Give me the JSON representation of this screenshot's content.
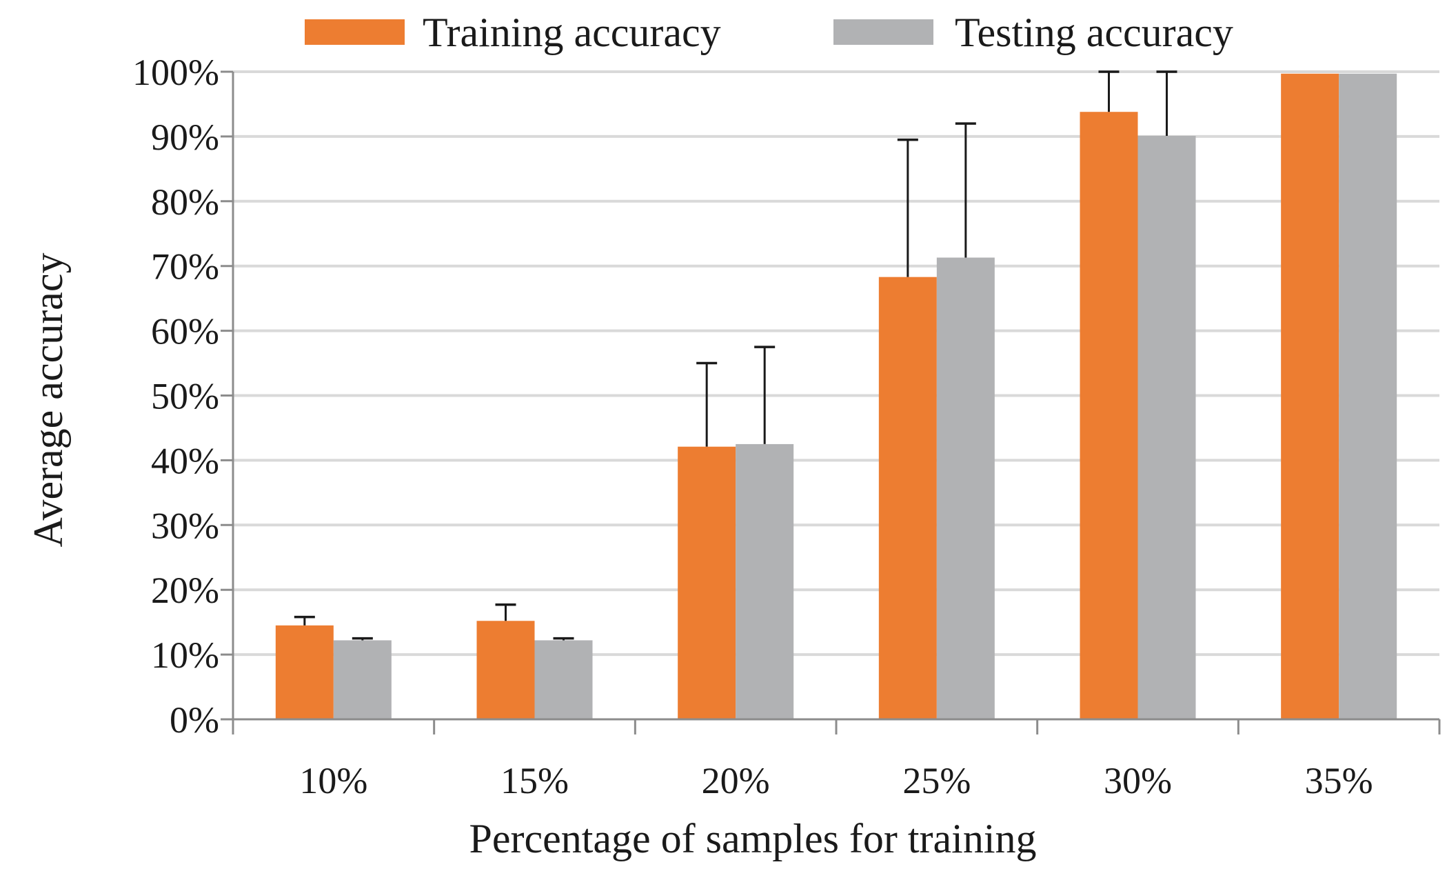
{
  "chart_data": {
    "type": "bar",
    "title": "",
    "xlabel": "Percentage of samples for training",
    "ylabel": "Average accuracy",
    "categories": [
      "10%",
      "15%",
      "20%",
      "25%",
      "30%",
      "35%"
    ],
    "ylim": [
      0,
      100
    ],
    "yticks": [
      0,
      10,
      20,
      30,
      40,
      50,
      60,
      70,
      80,
      90,
      100
    ],
    "ytick_labels": [
      "0%",
      "10%",
      "20%",
      "30%",
      "40%",
      "50%",
      "60%",
      "70%",
      "80%",
      "90%",
      "100%"
    ],
    "grid": true,
    "legend_position": "top-center",
    "series": [
      {
        "name": "Training accuracy",
        "color": "#ED7D31",
        "values": [
          14.5,
          15.2,
          42.1,
          68.3,
          93.8,
          99.7
        ],
        "error_upper": [
          1.3,
          2.5,
          12.9,
          21.2,
          6.2,
          0
        ]
      },
      {
        "name": "Testing accuracy",
        "color": "#B1B2B4",
        "values": [
          12.2,
          12.2,
          42.5,
          71.3,
          90.1,
          99.7
        ],
        "error_upper": [
          0.3,
          0.3,
          15.0,
          20.7,
          9.9,
          0
        ]
      }
    ]
  }
}
